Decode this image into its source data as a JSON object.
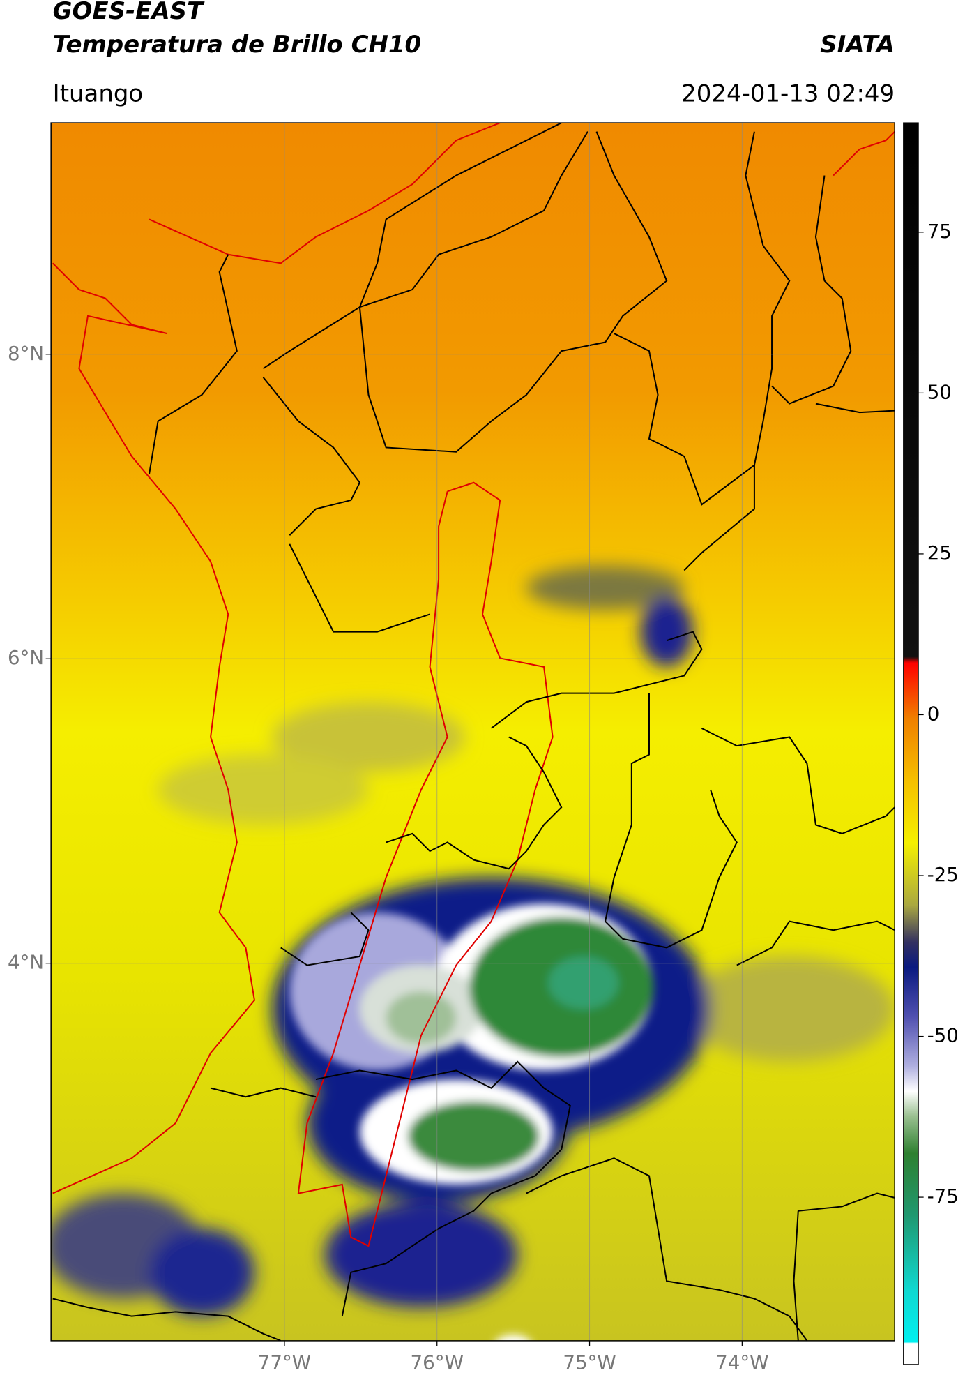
{
  "header": {
    "title": "GOES-EAST",
    "subtitle": "Temperatura de Brillo CH10",
    "source": "SIATA",
    "location": "Ituango",
    "datetime": "2024-01-13 02:49"
  },
  "map": {
    "xlim": [
      -78.53,
      -73.0
    ],
    "ylim": [
      1.52,
      9.52
    ],
    "xticks": [
      {
        "value": -77,
        "label": "77°W"
      },
      {
        "value": -76,
        "label": "76°W"
      },
      {
        "value": -75,
        "label": "75°W"
      },
      {
        "value": -74,
        "label": "74°W"
      }
    ],
    "yticks": [
      {
        "value": 8,
        "label": "8°N"
      },
      {
        "value": 6,
        "label": "6°N"
      },
      {
        "value": 4,
        "label": "4°N"
      }
    ],
    "grid": true
  },
  "colorbar": {
    "lim": [
      -101,
      92
    ],
    "ticks": [
      75,
      50,
      25,
      0,
      -25,
      -50,
      -75
    ]
  }
}
